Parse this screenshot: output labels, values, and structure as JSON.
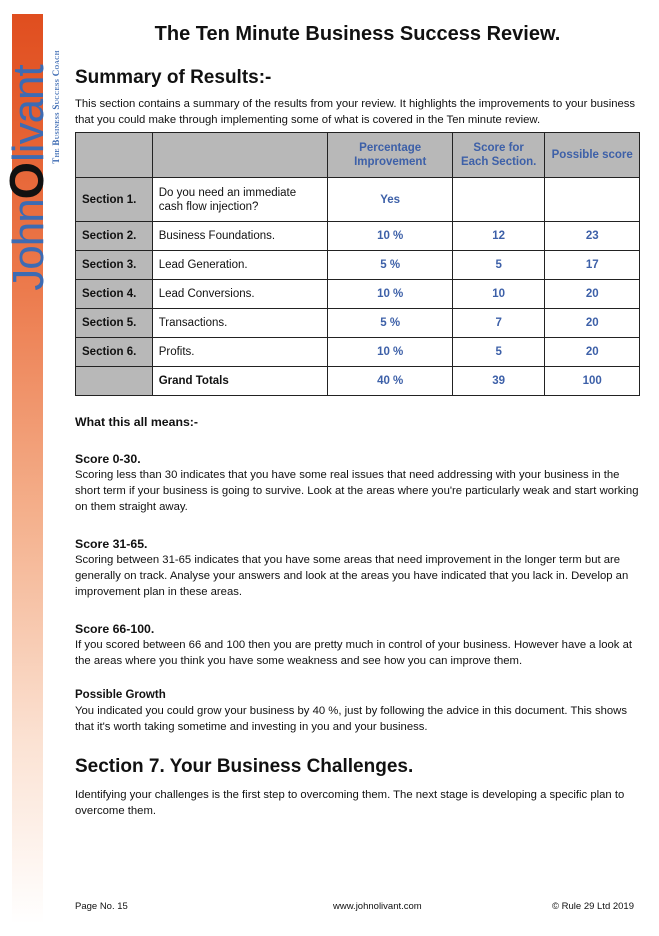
{
  "logo": {
    "text_a": "John",
    "text_o": "O",
    "text_b": "livant",
    "tagline": "The Business Success Coach"
  },
  "title": "The Ten Minute Business Success Review.",
  "summary": {
    "heading": "Summary of Results:-",
    "intro": "This section contains a summary of the results from your review. It highlights the improvements to your business that you could make through implementing some of what is covered in the Ten minute review."
  },
  "table": {
    "headers": [
      "",
      "",
      "Percentage Improvement",
      "Score for Each Section.",
      "Possible score"
    ],
    "rows": [
      [
        "Section 1.",
        "Do you need an immediate cash flow injection?",
        "Yes",
        "",
        ""
      ],
      [
        "Section 2.",
        "Business Foundations.",
        "10 %",
        "12",
        "23"
      ],
      [
        "Section 3.",
        "Lead Generation.",
        "5 %",
        "5",
        "17"
      ],
      [
        "Section 4.",
        "Lead Conversions.",
        "10 %",
        "10",
        "20"
      ],
      [
        "Section 5.",
        "Transactions.",
        "5 %",
        "7",
        "20"
      ],
      [
        "Section 6.",
        "Profits.",
        "10 %",
        "5",
        "20"
      ],
      [
        "",
        "Grand Totals",
        "40 %",
        "39",
        "100"
      ]
    ]
  },
  "meaning": {
    "heading": "What this all means:-",
    "blocks": [
      {
        "title": "Score 0-30.",
        "text": "Scoring less than 30 indicates that you have some real issues that need addressing with your business in the short term if your business is going to survive. Look at the areas where you're particularly weak and start working on them straight away."
      },
      {
        "title": "Score 31-65.",
        "text": "Scoring between 31-65 indicates that you have some areas that need improvement in the longer term but are generally on track. Analyse your answers and look at the areas you have indicated that you lack in. Develop an improvement plan in these areas."
      },
      {
        "title": "Score 66-100.",
        "text": "If you scored between 66 and 100 then you are pretty much in control of your business. However have a look at the areas where you think you have some weakness and see how you can improve them."
      },
      {
        "title": "Possible Growth",
        "text": "You indicated you could grow your business by 40 %, just by following the advice in this document. This shows that it's worth taking sometime and investing in you and your business."
      }
    ]
  },
  "section7": {
    "heading": "Section 7. Your Business Challenges.",
    "text": "Identifying your challenges is the first step to overcoming them. The next stage is developing a specific plan to overcome them."
  },
  "footer": {
    "page": "Page No. 15",
    "url": "www.johnolivant.com",
    "copyright": "© Rule 29 Ltd 2019"
  }
}
